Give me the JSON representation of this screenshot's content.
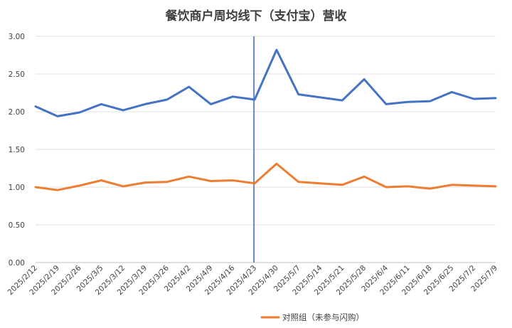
{
  "chart_data": {
    "type": "line",
    "title": "餐饮商户周均线下（支付宝）营收",
    "xlabel": "",
    "ylabel": "",
    "ylim": [
      0,
      3.0
    ],
    "yticks": [
      "0.00",
      "0.50",
      "1.00",
      "1.50",
      "2.00",
      "2.50",
      "3.00"
    ],
    "grid": true,
    "legend_position": "bottom",
    "categories": [
      "2025/2/12",
      "2025/2/19",
      "2025/2/26",
      "2025/3/5",
      "2025/3/12",
      "2025/3/19",
      "2025/3/26",
      "2025/4/2",
      "2025/4/9",
      "2025/4/16",
      "2025/4/23",
      "2025/4/30",
      "2025/5/7",
      "2025/5/14",
      "2025/5/21",
      "2025/5/28",
      "2025/6/4",
      "2025/6/11",
      "2025/6/18",
      "2025/6/25",
      "2025/7/2",
      "2025/7/9"
    ],
    "series": [
      {
        "color": "#4472c4",
        "values": [
          2.07,
          1.94,
          1.99,
          2.1,
          2.02,
          2.1,
          2.16,
          2.33,
          2.1,
          2.2,
          2.16,
          2.82,
          2.23,
          2.19,
          2.15,
          2.43,
          2.1,
          2.13,
          2.14,
          2.26,
          2.17,
          2.18
        ]
      },
      {
        "name": "对照组（未参与闪购）",
        "color": "#ed7d31",
        "values": [
          1.0,
          0.96,
          1.02,
          1.09,
          1.01,
          1.06,
          1.07,
          1.14,
          1.08,
          1.09,
          1.05,
          1.31,
          1.07,
          1.05,
          1.03,
          1.14,
          1.0,
          1.01,
          0.98,
          1.03,
          1.02,
          1.01
        ]
      }
    ],
    "reference_line": {
      "at_category": "2025/4/23",
      "color": "#4472c4"
    }
  }
}
